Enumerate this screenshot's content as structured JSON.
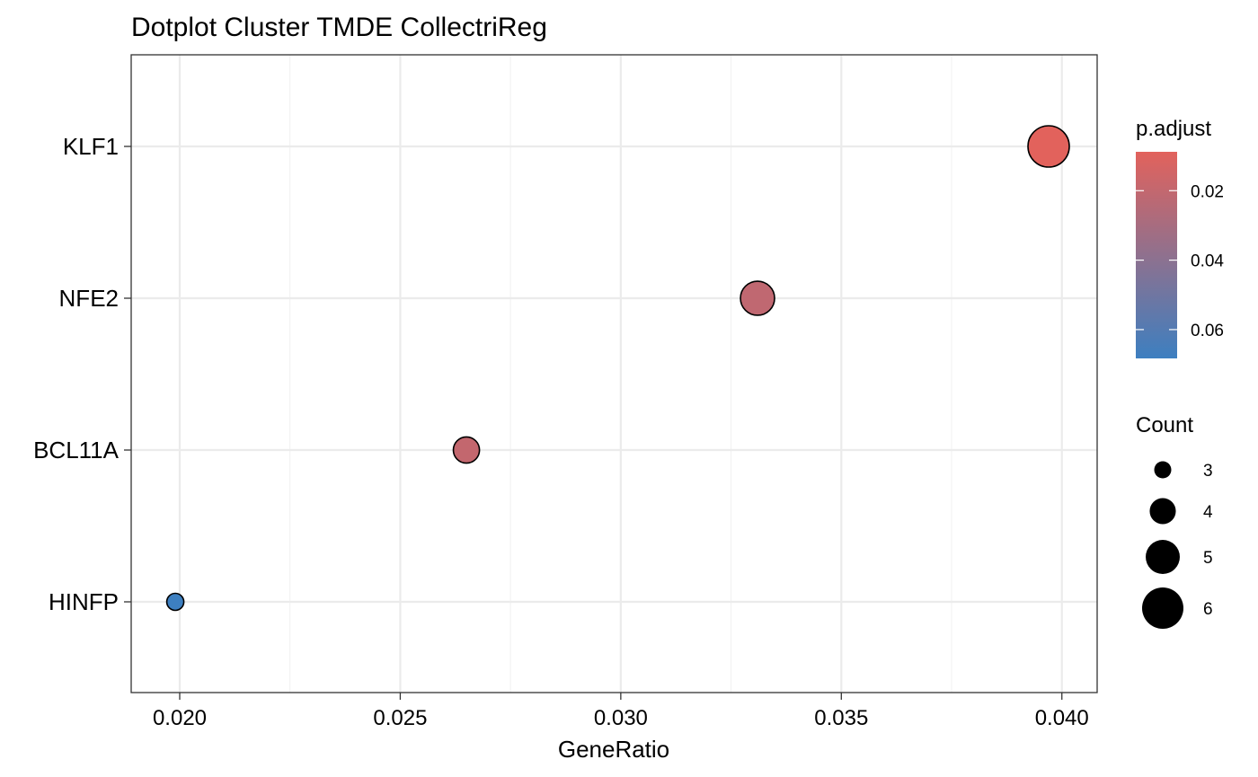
{
  "chart_data": {
    "type": "scatter",
    "title": "Dotplot Cluster TMDE CollectriReg",
    "xlabel": "GeneRatio",
    "ylabel": "",
    "xlim": [
      0.0189,
      0.0408
    ],
    "xticks": [
      0.02,
      0.025,
      0.03,
      0.035,
      0.04
    ],
    "xtick_labels": [
      "0.020",
      "0.025",
      "0.030",
      "0.035",
      "0.040"
    ],
    "categories": [
      "KLF1",
      "NFE2",
      "BCL11A",
      "HINFP"
    ],
    "points": [
      {
        "term": "KLF1",
        "gene_ratio": 0.0397,
        "count": 6,
        "p_adjust": 0.0088
      },
      {
        "term": "NFE2",
        "gene_ratio": 0.0331,
        "count": 5,
        "p_adjust": 0.0212
      },
      {
        "term": "BCL11A",
        "gene_ratio": 0.0265,
        "count": 4,
        "p_adjust": 0.0198
      },
      {
        "term": "HINFP",
        "gene_ratio": 0.0199,
        "count": 3,
        "p_adjust": 0.0683
      }
    ],
    "grid": true,
    "color_scale": {
      "title": "p.adjust",
      "low_value_color": "#e2625c",
      "high_value_color": "#3d7fc0",
      "range": [
        0.0088,
        0.0683
      ],
      "ticks": [
        0.02,
        0.04,
        0.06
      ],
      "tick_labels": [
        "0.02",
        "0.04",
        "0.06"
      ]
    },
    "size_scale": {
      "title": "Count",
      "values": [
        3,
        4,
        5,
        6
      ],
      "labels": [
        "3",
        "4",
        "5",
        "6"
      ]
    },
    "legend_position": "right"
  }
}
